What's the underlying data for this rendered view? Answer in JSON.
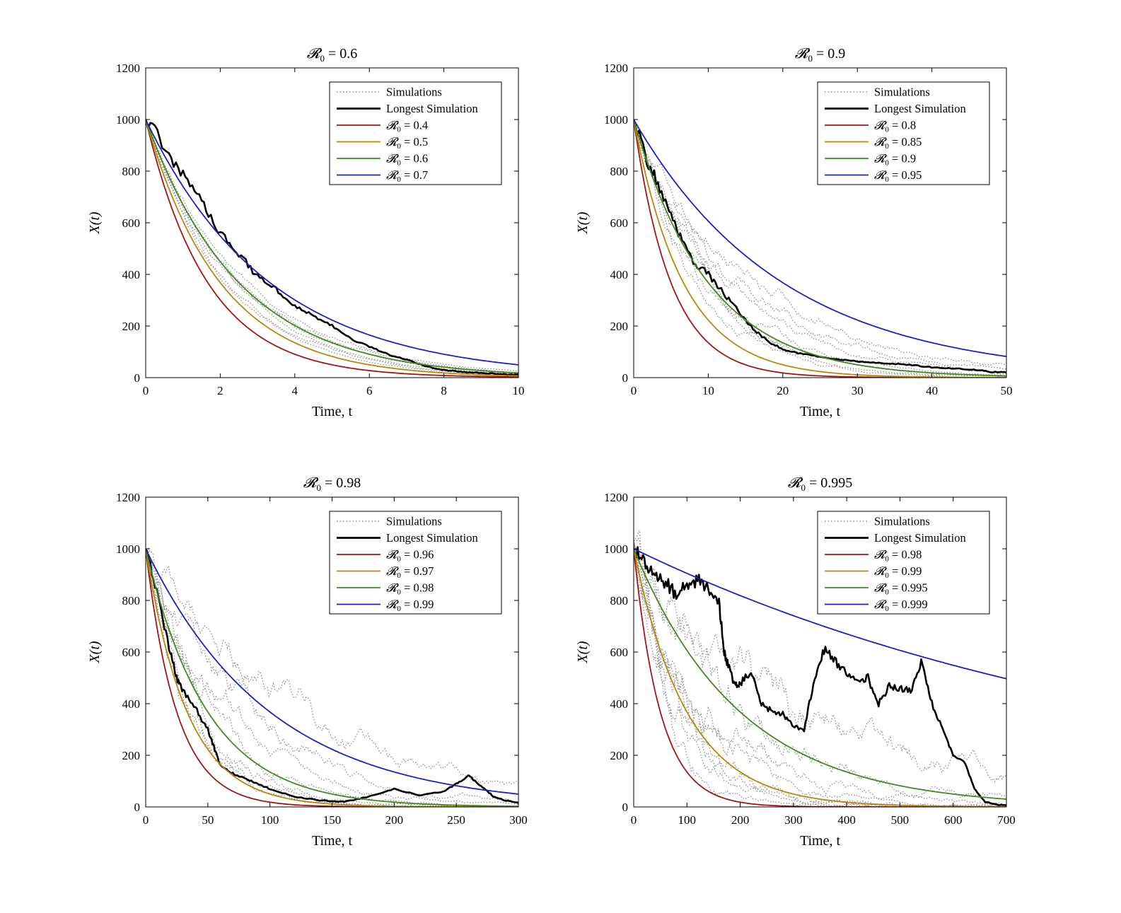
{
  "figure": {
    "xlabel": "Time, t",
    "ylabel": "X(t)",
    "legend_simulations": "Simulations",
    "legend_longest": "Longest Simulation"
  },
  "colors": {
    "red": "#a01515",
    "orange": "#b8860b",
    "green": "#3f8a1f",
    "blue": "#1f1fbf",
    "simulations": "#8c8c8c",
    "longest": "#000000"
  },
  "chart_data": [
    {
      "type": "line",
      "title": "R0 = 0.6",
      "title_parts": [
        "𝓡",
        "0",
        " = 0.6"
      ],
      "xlabel": "Time, t",
      "ylabel": "X(t)",
      "xlim": [
        0,
        10
      ],
      "ylim": [
        0,
        1200
      ],
      "xticks": [
        0,
        2,
        4,
        6,
        8,
        10
      ],
      "yticks": [
        0,
        200,
        400,
        600,
        800,
        1000,
        1200
      ],
      "initial_value": 1000,
      "series": [
        {
          "name": "R0 = 0.4",
          "r0": "0.4",
          "decay_rate": 0.6,
          "color": "red"
        },
        {
          "name": "R0 = 0.5",
          "r0": "0.5",
          "decay_rate": 0.5,
          "color": "orange"
        },
        {
          "name": "R0 = 0.6",
          "r0": "0.6",
          "decay_rate": 0.4,
          "color": "green"
        },
        {
          "name": "R0 = 0.7",
          "r0": "0.7",
          "decay_rate": 0.3,
          "color": "blue"
        }
      ],
      "simulations": {
        "count": 6,
        "rate_range": [
          0.37,
          0.46
        ],
        "noise": 12
      },
      "longest_simulation": {
        "x": [
          0,
          0.5,
          1,
          1.5,
          2,
          2.5,
          3,
          3.5,
          4,
          4.5,
          5,
          5.5,
          6,
          6.5,
          7,
          7.5,
          8,
          8.5,
          9,
          9.5,
          10
        ],
        "y": [
          1000,
          900,
          780,
          690,
          560,
          480,
          390,
          340,
          280,
          240,
          200,
          150,
          120,
          90,
          70,
          45,
          30,
          22,
          18,
          14,
          12
        ]
      }
    },
    {
      "type": "line",
      "title": "R0 = 0.9",
      "title_parts": [
        "𝓡",
        "0",
        " = 0.9"
      ],
      "xlabel": "Time, t",
      "ylabel": "X(t)",
      "xlim": [
        0,
        50
      ],
      "ylim": [
        0,
        1200
      ],
      "xticks": [
        0,
        10,
        20,
        30,
        40,
        50
      ],
      "yticks": [
        0,
        200,
        400,
        600,
        800,
        1000,
        1200
      ],
      "initial_value": 1000,
      "series": [
        {
          "name": "R0 = 0.8",
          "r0": "0.8",
          "decay_rate": 0.2,
          "color": "red"
        },
        {
          "name": "R0 = 0.85",
          "r0": "0.85",
          "decay_rate": 0.15,
          "color": "orange"
        },
        {
          "name": "R0 = 0.9",
          "r0": "0.9",
          "decay_rate": 0.1,
          "color": "green"
        },
        {
          "name": "R0 = 0.95",
          "r0": "0.95",
          "decay_rate": 0.05,
          "color": "blue"
        }
      ],
      "simulations": {
        "count": 7,
        "rate_range": [
          0.06,
          0.12
        ],
        "noise": 35
      },
      "longest_simulation": {
        "x": [
          0,
          2,
          4,
          6,
          8,
          10,
          12,
          14,
          16,
          18,
          20,
          22,
          25,
          28,
          31,
          34,
          37,
          40,
          43,
          46,
          48,
          50
        ],
        "y": [
          1000,
          830,
          700,
          560,
          450,
          400,
          330,
          260,
          190,
          140,
          110,
          95,
          80,
          70,
          60,
          55,
          50,
          40,
          35,
          30,
          22,
          20
        ]
      }
    },
    {
      "type": "line",
      "title": "R0 = 0.98",
      "title_parts": [
        "𝓡",
        "0",
        " = 0.98"
      ],
      "xlabel": "Time, t",
      "ylabel": "X(t)",
      "xlim": [
        0,
        300
      ],
      "ylim": [
        0,
        1200
      ],
      "xticks": [
        0,
        50,
        100,
        150,
        200,
        250,
        300
      ],
      "yticks": [
        0,
        200,
        400,
        600,
        800,
        1000,
        1200
      ],
      "initial_value": 1000,
      "series": [
        {
          "name": "R0 = 0.96",
          "r0": "0.96",
          "decay_rate": 0.04,
          "color": "red"
        },
        {
          "name": "R0 = 0.97",
          "r0": "0.97",
          "decay_rate": 0.03,
          "color": "orange"
        },
        {
          "name": "R0 = 0.98",
          "r0": "0.98",
          "decay_rate": 0.02,
          "color": "green"
        },
        {
          "name": "R0 = 0.99",
          "r0": "0.99",
          "decay_rate": 0.01,
          "color": "blue"
        }
      ],
      "simulations": {
        "count": 7,
        "rate_range": [
          0.008,
          0.03
        ],
        "noise": 60
      },
      "longest_simulation": {
        "x": [
          0,
          10,
          20,
          25,
          30,
          40,
          50,
          55,
          60,
          70,
          80,
          90,
          100,
          120,
          140,
          160,
          180,
          200,
          220,
          240,
          250,
          260,
          270,
          280,
          290,
          300
        ],
        "y": [
          1000,
          800,
          600,
          500,
          450,
          380,
          300,
          230,
          160,
          130,
          110,
          90,
          70,
          40,
          25,
          20,
          40,
          70,
          45,
          60,
          90,
          120,
          80,
          40,
          25,
          15
        ]
      }
    },
    {
      "type": "line",
      "title": "R0 = 0.995",
      "title_parts": [
        "𝓡",
        "0",
        " = 0.995"
      ],
      "xlabel": "Time, t",
      "ylabel": "X(t)",
      "xlim": [
        0,
        700
      ],
      "ylim": [
        0,
        1200
      ],
      "xticks": [
        0,
        100,
        200,
        300,
        400,
        500,
        600,
        700
      ],
      "yticks": [
        0,
        200,
        400,
        600,
        800,
        1000,
        1200
      ],
      "initial_value": 1000,
      "series": [
        {
          "name": "R0 = 0.98",
          "r0": "0.98",
          "decay_rate": 0.02,
          "color": "red"
        },
        {
          "name": "R0 = 0.99",
          "r0": "0.99",
          "decay_rate": 0.01,
          "color": "orange"
        },
        {
          "name": "R0 = 0.995",
          "r0": "0.995",
          "decay_rate": 0.005,
          "color": "green"
        },
        {
          "name": "R0 = 0.999",
          "r0": "0.999",
          "decay_rate": 0.001,
          "color": "blue"
        }
      ],
      "simulations": {
        "count": 8,
        "rate_range": [
          0.003,
          0.015
        ],
        "noise": 90
      },
      "longest_simulation": {
        "x": [
          0,
          20,
          40,
          60,
          80,
          100,
          120,
          140,
          160,
          170,
          180,
          190,
          200,
          220,
          240,
          260,
          280,
          300,
          320,
          340,
          360,
          380,
          400,
          420,
          440,
          460,
          480,
          500,
          520,
          540,
          560,
          580,
          600,
          620,
          640,
          660,
          680,
          700
        ],
        "y": [
          1000,
          950,
          900,
          870,
          820,
          860,
          880,
          850,
          800,
          600,
          530,
          470,
          480,
          520,
          400,
          370,
          360,
          310,
          300,
          500,
          620,
          560,
          520,
          480,
          500,
          400,
          470,
          460,
          450,
          560,
          400,
          300,
          200,
          180,
          70,
          20,
          10,
          5
        ]
      }
    }
  ]
}
